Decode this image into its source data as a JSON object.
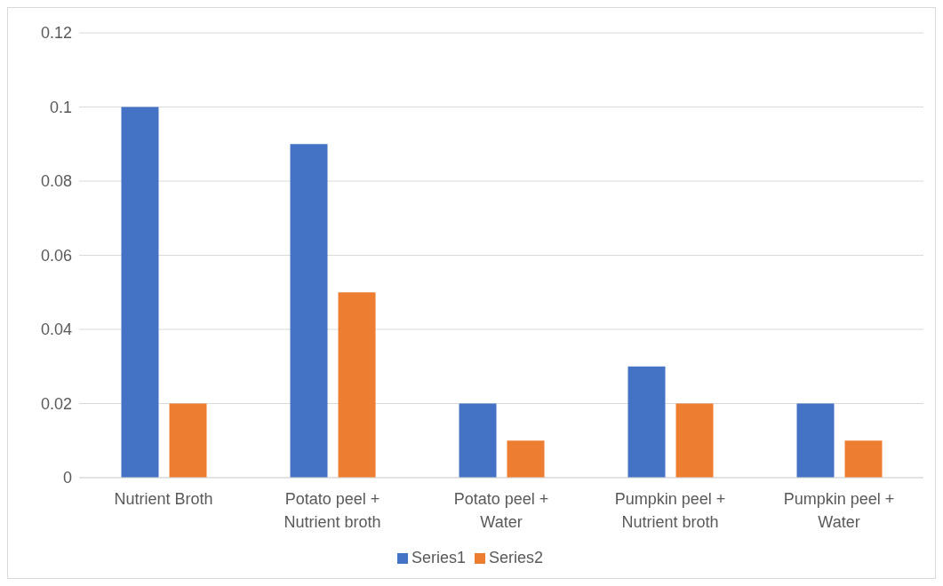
{
  "chart_data": {
    "type": "bar",
    "categories": [
      "Nutrient Broth",
      "Potato peel + Nutrient broth",
      "Potato peel + Water",
      "Pumpkin peel + Nutrient broth",
      "Pumpkin peel + Water"
    ],
    "series": [
      {
        "name": "Series1",
        "color": "#4472c4",
        "values": [
          0.1,
          0.09,
          0.02,
          0.03,
          0.02
        ]
      },
      {
        "name": "Series2",
        "color": "#ed7d31",
        "values": [
          0.02,
          0.05,
          0.01,
          0.02,
          0.01
        ]
      }
    ],
    "ylim": [
      0,
      0.12
    ],
    "yticks": [
      0,
      0.02,
      0.04,
      0.06,
      0.08,
      0.1,
      0.12
    ],
    "grid": "y",
    "legend": "bottom"
  }
}
